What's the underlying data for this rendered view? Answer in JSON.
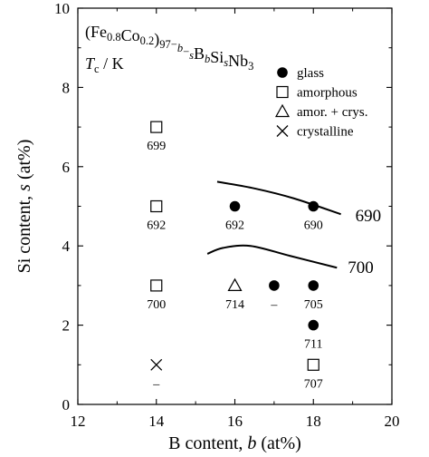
{
  "chart_data": {
    "type": "scatter",
    "title": "",
    "annotation": {
      "alloy_parts": [
        {
          "text": "(Fe",
          "style": "normal"
        },
        {
          "text": "0.8",
          "style": "sub"
        },
        {
          "text": "Co",
          "style": "normal"
        },
        {
          "text": "0.2",
          "style": "sub"
        },
        {
          "text": ")",
          "style": "normal"
        },
        {
          "text": "97−",
          "style": "sub"
        },
        {
          "text": "b",
          "style": "sub-italic"
        },
        {
          "text": "−",
          "style": "sub"
        },
        {
          "text": "s",
          "style": "sub-italic"
        },
        {
          "text": "B",
          "style": "normal"
        },
        {
          "text": "b",
          "style": "sub-italic"
        },
        {
          "text": "Si",
          "style": "normal"
        },
        {
          "text": "s",
          "style": "sub-italic"
        },
        {
          "text": "Nb",
          "style": "normal"
        },
        {
          "text": "3",
          "style": "sub"
        }
      ],
      "tc_symbol": "T",
      "tc_sub": "c",
      "tc_unit": " / K"
    },
    "xlabel": {
      "prefix": "B content, ",
      "var": "b",
      "suffix": " (at%)"
    },
    "ylabel": {
      "prefix": "Si content, ",
      "var": "s",
      "suffix": " (at%)"
    },
    "xlim": [
      12,
      20
    ],
    "ylim": [
      0,
      10
    ],
    "xticks": [
      "12",
      "14",
      "16",
      "18",
      "20"
    ],
    "yticks": [
      "0",
      "2",
      "4",
      "6",
      "8",
      "10"
    ],
    "legend_position": "top-right",
    "legend": [
      {
        "marker": "circle-filled",
        "label": "glass"
      },
      {
        "marker": "square-open",
        "label": "amorphous"
      },
      {
        "marker": "triangle-open",
        "label": "amor. + crys."
      },
      {
        "marker": "cross",
        "label": "crystalline"
      }
    ],
    "points": [
      {
        "x": 14,
        "y": 7,
        "marker": "square-open",
        "label": "699"
      },
      {
        "x": 14,
        "y": 5,
        "marker": "square-open",
        "label": "692"
      },
      {
        "x": 14,
        "y": 3,
        "marker": "square-open",
        "label": "700"
      },
      {
        "x": 14,
        "y": 1,
        "marker": "cross",
        "label": "–"
      },
      {
        "x": 16,
        "y": 5,
        "marker": "circle-filled",
        "label": "692"
      },
      {
        "x": 18,
        "y": 5,
        "marker": "circle-filled",
        "label": "690"
      },
      {
        "x": 16,
        "y": 3,
        "marker": "triangle-open",
        "label": "714"
      },
      {
        "x": 17,
        "y": 3,
        "marker": "circle-filled",
        "label": "–"
      },
      {
        "x": 18,
        "y": 3,
        "marker": "circle-filled",
        "label": "705"
      },
      {
        "x": 18,
        "y": 2,
        "marker": "circle-filled",
        "label": "711"
      },
      {
        "x": 18,
        "y": 1,
        "marker": "square-open",
        "label": "707"
      }
    ],
    "contours": [
      {
        "label": "690",
        "points": [
          [
            15.55,
            5.62
          ],
          [
            16.5,
            5.45
          ],
          [
            17.5,
            5.2
          ],
          [
            18.7,
            4.8
          ]
        ]
      },
      {
        "label": "700",
        "points": [
          [
            15.3,
            3.8
          ],
          [
            15.7,
            3.95
          ],
          [
            16.4,
            4.0
          ],
          [
            17.4,
            3.75
          ],
          [
            18.6,
            3.45
          ]
        ]
      }
    ]
  }
}
